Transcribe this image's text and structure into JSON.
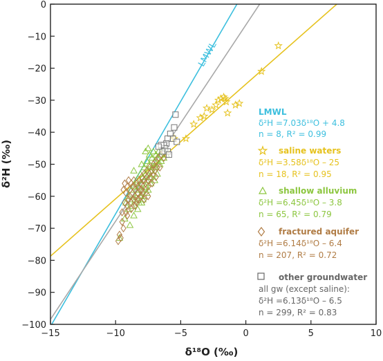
{
  "chart_data": {
    "type": "scatter",
    "xlabel": "δ¹⁸O (‰)",
    "ylabel": "δ²H (‰)",
    "xlim": [
      -15,
      10
    ],
    "ylim": [
      -100,
      0
    ],
    "xticks": [
      -15,
      -10,
      -5,
      0,
      5,
      10
    ],
    "xtick_labels": [
      "−15",
      "−10",
      "−5",
      "0",
      "5",
      "10"
    ],
    "yticks": [
      0,
      -10,
      -20,
      -30,
      -40,
      -50,
      -60,
      -70,
      -80,
      -90,
      -100
    ],
    "ytick_labels": [
      "0",
      "−10",
      "−20",
      "−30",
      "−40",
      "−50",
      "−60",
      "−70",
      "−80",
      "−90",
      "−100"
    ],
    "grid": false,
    "line_label": "LMWL",
    "lines": [
      {
        "id": "lmwl",
        "slope": 7.03,
        "intercept": 4.8,
        "color": "#3cbfde",
        "x_range": [
          -15,
          10
        ]
      },
      {
        "id": "all_gw",
        "slope": 6.13,
        "intercept": -6.5,
        "color": "#a8a8a8",
        "x_range": [
          -15,
          10
        ]
      },
      {
        "id": "saline",
        "slope": 3.58,
        "intercept": -25,
        "color": "#e6c21e",
        "x_range": [
          -15,
          10
        ]
      }
    ],
    "series": [
      {
        "name": "saline waters",
        "marker": "star",
        "color": "#e6c21e",
        "points": [
          [
            2.5,
            -13
          ],
          [
            1.2,
            -21
          ],
          [
            -0.5,
            -31
          ],
          [
            -0.8,
            -31.5
          ],
          [
            -1.5,
            -30.5
          ],
          [
            -1.6,
            -29.5
          ],
          [
            -1.7,
            -29
          ],
          [
            -1.9,
            -29.5
          ],
          [
            -2.1,
            -30
          ],
          [
            -1.4,
            -34
          ],
          [
            -2.3,
            -31.5
          ],
          [
            -2.6,
            -33
          ],
          [
            -3.0,
            -32.5
          ],
          [
            -3.2,
            -35
          ],
          [
            -3.5,
            -35.5
          ],
          [
            -4.0,
            -37.5
          ],
          [
            -4.6,
            -42
          ],
          [
            -5.5,
            -42
          ]
        ]
      },
      {
        "name": "shallow alluvium",
        "marker": "triangle",
        "color": "#8cc63f",
        "points": [
          [
            -9.7,
            -73
          ],
          [
            -9.3,
            -67
          ],
          [
            -9.2,
            -62
          ],
          [
            -9.0,
            -64
          ],
          [
            -9.0,
            -60
          ],
          [
            -8.8,
            -58
          ],
          [
            -8.7,
            -63
          ],
          [
            -8.6,
            -66
          ],
          [
            -8.5,
            -57
          ],
          [
            -8.5,
            -61
          ],
          [
            -8.4,
            -55
          ],
          [
            -8.3,
            -59
          ],
          [
            -8.3,
            -64
          ],
          [
            -8.2,
            -57
          ],
          [
            -8.1,
            -53
          ],
          [
            -8.1,
            -60
          ],
          [
            -8.0,
            -56
          ],
          [
            -8.0,
            -62
          ],
          [
            -7.9,
            -54
          ],
          [
            -7.9,
            -58
          ],
          [
            -7.8,
            -51
          ],
          [
            -7.8,
            -55
          ],
          [
            -7.8,
            -60
          ],
          [
            -7.7,
            -53
          ],
          [
            -7.7,
            -57
          ],
          [
            -7.6,
            -49
          ],
          [
            -7.6,
            -55
          ],
          [
            -7.5,
            -52
          ],
          [
            -7.5,
            -58
          ],
          [
            -7.4,
            -47
          ],
          [
            -7.4,
            -50
          ],
          [
            -7.4,
            -54
          ],
          [
            -7.3,
            -52
          ],
          [
            -7.3,
            -56
          ],
          [
            -7.2,
            -48
          ],
          [
            -7.2,
            -51
          ],
          [
            -7.1,
            -46
          ],
          [
            -7.1,
            -53
          ],
          [
            -7.0,
            -49
          ],
          [
            -7.0,
            -55
          ],
          [
            -6.9,
            -47
          ],
          [
            -6.9,
            -51
          ],
          [
            -6.8,
            -48
          ],
          [
            -6.8,
            -53
          ],
          [
            -6.7,
            -46
          ],
          [
            -6.7,
            -50
          ],
          [
            -6.6,
            -47
          ],
          [
            -6.5,
            -49
          ],
          [
            -6.4,
            -46
          ],
          [
            -6.3,
            -48
          ],
          [
            -6.2,
            -45
          ],
          [
            -6.1,
            -47
          ],
          [
            -8.9,
            -69
          ],
          [
            -8.7,
            -61
          ],
          [
            -8.4,
            -58
          ],
          [
            -8.2,
            -62
          ],
          [
            -7.9,
            -61
          ],
          [
            -7.6,
            -59
          ],
          [
            -7.3,
            -54
          ],
          [
            -7.0,
            -51
          ],
          [
            -6.6,
            -50
          ],
          [
            -8.6,
            -52
          ],
          [
            -8.0,
            -50
          ],
          [
            -7.7,
            -46
          ],
          [
            -7.5,
            -45
          ]
        ]
      },
      {
        "name": "fractured aquifer",
        "marker": "diamond",
        "color": "#b07c45",
        "points": [
          [
            -9.8,
            -74
          ],
          [
            -9.7,
            -72
          ],
          [
            -9.6,
            -73
          ],
          [
            -9.5,
            -68
          ],
          [
            -9.4,
            -70
          ],
          [
            -9.4,
            -58
          ],
          [
            -9.3,
            -56
          ],
          [
            -9.3,
            -62
          ],
          [
            -9.2,
            -65
          ],
          [
            -9.2,
            -59
          ],
          [
            -9.1,
            -57
          ],
          [
            -9.1,
            -63
          ],
          [
            -9.0,
            -61
          ],
          [
            -9.0,
            -55
          ],
          [
            -8.9,
            -58
          ],
          [
            -8.9,
            -60
          ],
          [
            -8.8,
            -56
          ],
          [
            -8.8,
            -62
          ],
          [
            -8.7,
            -59
          ],
          [
            -8.7,
            -57
          ],
          [
            -8.6,
            -61
          ],
          [
            -8.6,
            -55
          ],
          [
            -8.5,
            -58
          ],
          [
            -8.5,
            -60
          ],
          [
            -8.4,
            -56
          ],
          [
            -8.4,
            -62
          ],
          [
            -8.3,
            -57
          ],
          [
            -8.3,
            -59
          ],
          [
            -8.2,
            -55
          ],
          [
            -8.2,
            -61
          ],
          [
            -8.1,
            -58
          ],
          [
            -8.1,
            -56
          ],
          [
            -8.0,
            -60
          ],
          [
            -8.0,
            -54
          ],
          [
            -7.9,
            -57
          ],
          [
            -7.9,
            -59
          ],
          [
            -7.8,
            -55
          ],
          [
            -7.8,
            -53
          ],
          [
            -7.7,
            -56
          ],
          [
            -7.7,
            -58
          ],
          [
            -7.6,
            -54
          ],
          [
            -7.6,
            -52
          ],
          [
            -7.5,
            -55
          ],
          [
            -7.5,
            -57
          ],
          [
            -7.4,
            -53
          ],
          [
            -7.4,
            -51
          ],
          [
            -7.3,
            -54
          ],
          [
            -7.2,
            -52
          ],
          [
            -7.1,
            -50
          ],
          [
            -7.0,
            -52
          ],
          [
            -6.9,
            -49
          ],
          [
            -6.8,
            -51
          ],
          [
            -6.7,
            -48
          ],
          [
            -6.5,
            -47
          ],
          [
            -9.5,
            -65
          ],
          [
            -9.1,
            -66
          ],
          [
            -8.8,
            -64
          ],
          [
            -8.5,
            -63
          ],
          [
            -8.3,
            -61
          ],
          [
            -8.0,
            -58
          ],
          [
            -7.8,
            -61
          ],
          [
            -7.5,
            -60
          ],
          [
            -7.2,
            -56
          ],
          [
            -6.9,
            -54
          ],
          [
            -6.6,
            -51
          ],
          [
            -6.3,
            -48
          ]
        ]
      },
      {
        "name": "other groundwater",
        "marker": "square",
        "color": "#777777",
        "points": [
          [
            -5.4,
            -34.5
          ],
          [
            -5.5,
            -38.5
          ],
          [
            -5.8,
            -40.5
          ],
          [
            -5.6,
            -42
          ],
          [
            -5.3,
            -43
          ],
          [
            -6.0,
            -42
          ],
          [
            -6.1,
            -43.5
          ],
          [
            -6.3,
            -44
          ],
          [
            -6.2,
            -45
          ],
          [
            -6.5,
            -44
          ],
          [
            -6.4,
            -46
          ],
          [
            -6.7,
            -44.5
          ],
          [
            -6.0,
            -46
          ],
          [
            -5.9,
            -47
          ]
        ]
      }
    ],
    "legend": {
      "placement": "right",
      "lmwl": {
        "title": "LMWL",
        "eq": "δ²H =7.03δ¹⁸O + 4.8",
        "stats": "n = 8, R² = 0.99",
        "color": "#3cbfde"
      },
      "saline": {
        "title": "saline waters",
        "eq": "δ²H =3.58δ¹⁸O – 25",
        "stats": "n = 18, R² = 0.95",
        "color": "#e6c21e"
      },
      "shallow": {
        "title": "shallow alluvium",
        "eq": "δ²H =6.45δ¹⁸O – 3.8",
        "stats": "n = 65, R² = 0.79",
        "color": "#8cc63f"
      },
      "fractured": {
        "title": "fractured aquifer",
        "eq": "δ²H =6.14δ¹⁸O – 6.4",
        "stats": "n = 207, R² = 0.72",
        "color": "#b07c45"
      },
      "other": {
        "title": "other groundwater",
        "sub": "all gw (except saline):",
        "eq": "δ²H =6.13δ¹⁸O – 6.5",
        "stats": "n = 299, R² = 0.83",
        "color": "#666666"
      }
    }
  }
}
